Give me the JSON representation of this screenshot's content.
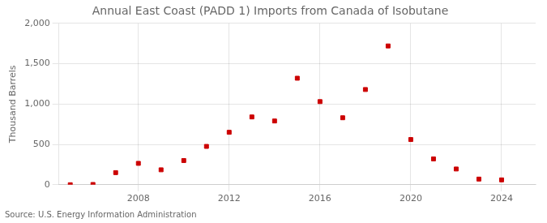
{
  "chart_data": {
    "type": "scatter",
    "title": "Annual East Coast (PADD 1) Imports from Canada of Isobutane",
    "ylabel": "Thousand Barrels",
    "annotation": "Source: U.S. Energy Information Administration",
    "x": [
      2005,
      2006,
      2007,
      2008,
      2009,
      2010,
      2011,
      2012,
      2013,
      2014,
      2015,
      2016,
      2017,
      2018,
      2019,
      2020,
      2021,
      2022,
      2023,
      2024
    ],
    "values": [
      0,
      3,
      150,
      265,
      185,
      300,
      475,
      650,
      840,
      790,
      1320,
      1030,
      830,
      1180,
      1720,
      560,
      320,
      195,
      70,
      60
    ],
    "color": "#cc0000",
    "marker": "square",
    "xlim": [
      2004.5,
      2025.5
    ],
    "xticks": [
      2008,
      2012,
      2016,
      2020,
      2024
    ],
    "ylim": [
      0,
      2000
    ],
    "yticks": [
      0,
      500,
      {
        "value": 1000,
        "label": "1,000"
      },
      {
        "value": 1500,
        "label": "1,500"
      },
      {
        "value": 2000,
        "label": "2,000"
      }
    ],
    "grid": true
  }
}
